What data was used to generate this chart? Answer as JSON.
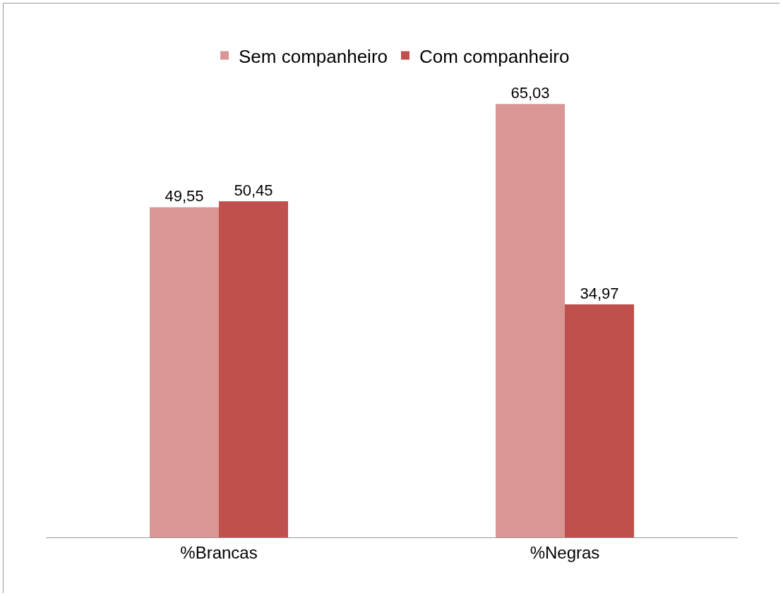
{
  "chart_data": {
    "type": "bar",
    "categories": [
      "%Brancas",
      "%Negras"
    ],
    "series": [
      {
        "name": "Sem companheiro",
        "color": "#d99694",
        "values": [
          49.55,
          65.03
        ],
        "value_labels": [
          "49,55",
          "65,03"
        ]
      },
      {
        "name": "Com companheiro",
        "color": "#c0504d",
        "values": [
          50.45,
          34.97
        ],
        "value_labels": [
          "50,45",
          "34,97"
        ]
      }
    ],
    "legend": "top",
    "grid": false
  }
}
